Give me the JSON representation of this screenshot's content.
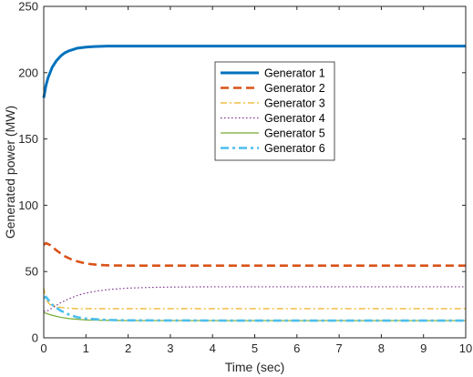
{
  "chart_data": {
    "type": "line",
    "title": "",
    "xlabel": "Time (sec)",
    "ylabel": "Generated power (MW)",
    "xlim": [
      0,
      10
    ],
    "ylim": [
      0,
      250
    ],
    "xticks": [
      "0",
      "1",
      "2",
      "3",
      "4",
      "5",
      "6",
      "7",
      "8",
      "9",
      "10"
    ],
    "yticks": [
      "0",
      "50",
      "100",
      "150",
      "200",
      "250"
    ],
    "grid": false,
    "legend_position": "upper-center",
    "series": [
      {
        "name": "Generator 1",
        "color": "#0072BD",
        "style": "solid",
        "x": [
          0,
          0.05,
          0.1,
          0.2,
          0.3,
          0.4,
          0.5,
          0.6,
          0.8,
          1,
          1.2,
          1.5,
          2,
          3,
          5,
          10
        ],
        "y": [
          181,
          190,
          196,
          204,
          209,
          212.5,
          215,
          216.5,
          218.5,
          219.3,
          219.7,
          220,
          220,
          220,
          220,
          220
        ]
      },
      {
        "name": "Generator 2",
        "color": "#D95319",
        "style": "dashed",
        "x": [
          0,
          0.05,
          0.15,
          0.3,
          0.5,
          0.7,
          1,
          1.3,
          1.6,
          2,
          3,
          5,
          10
        ],
        "y": [
          70,
          71.5,
          70,
          66,
          61.5,
          58.5,
          56,
          55,
          54.6,
          54.5,
          54.5,
          54.5,
          54.5
        ]
      },
      {
        "name": "Generator 3",
        "color": "#EDB120",
        "style": "dashdot",
        "x": [
          0,
          0.05,
          0.15,
          0.3,
          0.5,
          0.8,
          1,
          1.5,
          2,
          3,
          5,
          10
        ],
        "y": [
          38,
          29,
          25,
          23.5,
          22.5,
          22,
          22,
          22,
          22,
          22,
          22,
          22
        ]
      },
      {
        "name": "Generator 4",
        "color": "#7E2F8E",
        "style": "dotted",
        "x": [
          0,
          0.1,
          0.2,
          0.4,
          0.6,
          0.8,
          1,
          1.3,
          1.6,
          2,
          2.5,
          3,
          4,
          5,
          10
        ],
        "y": [
          20,
          20.5,
          22.5,
          26.5,
          29.5,
          32,
          33.8,
          35.5,
          36.6,
          37.5,
          38,
          38.3,
          38.5,
          38.5,
          38.5
        ]
      },
      {
        "name": "Generator 5",
        "color": "#77AC30",
        "style": "solid",
        "x": [
          0,
          0.2,
          0.4,
          0.6,
          0.8,
          1,
          1.5,
          2,
          3,
          5,
          10
        ],
        "y": [
          19,
          17,
          15.5,
          14.5,
          14,
          13.5,
          13.2,
          13,
          13,
          13,
          13
        ]
      },
      {
        "name": "Generator 6",
        "color": "#4DBEEE",
        "style": "dashdot-thick",
        "x": [
          0,
          0.05,
          0.1,
          0.2,
          0.4,
          0.6,
          0.8,
          1,
          1.5,
          2,
          3,
          5,
          10
        ],
        "y": [
          30,
          31,
          29,
          25,
          20.5,
          17.5,
          15.5,
          14.5,
          13.5,
          13.2,
          13.1,
          13,
          13
        ]
      }
    ]
  }
}
